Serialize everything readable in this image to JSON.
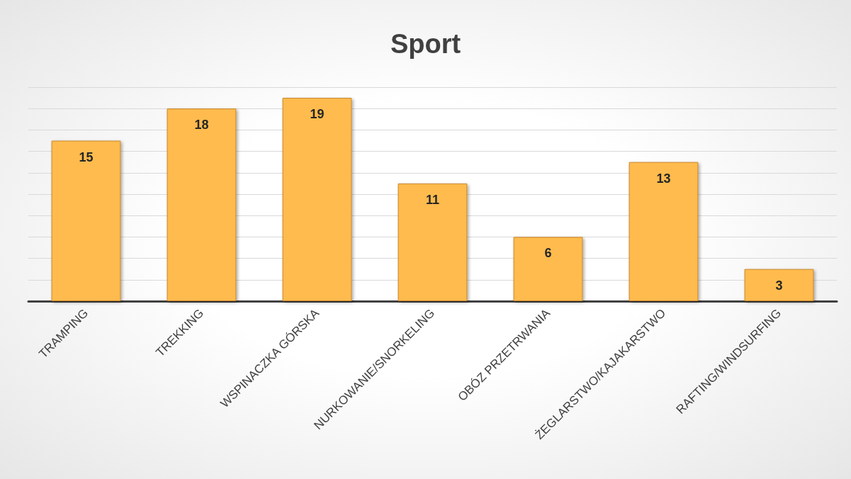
{
  "chart_data": {
    "type": "bar",
    "title": "Sport",
    "categories": [
      "TRAMPING",
      "TREKKING",
      "WSPINACZKA GÓRSKA",
      "NURKOWANIE/SNORKELING",
      "OBÓZ PRZETRWANIA",
      "ŻEGLARSTWO/KAJAKARSTWO",
      "RAFTING/WINDSURFING"
    ],
    "values": [
      15,
      18,
      19,
      11,
      6,
      13,
      3
    ],
    "color": "#ffbb4d",
    "ylim": [
      0,
      20
    ],
    "yticks": [
      {
        "value": 0,
        "label": null
      },
      {
        "value": 2,
        "label": null
      },
      {
        "value": 4,
        "label": null
      },
      {
        "value": 6,
        "label": null
      },
      {
        "value": 8,
        "label": null
      },
      {
        "value": 10,
        "label": null
      },
      {
        "value": 12,
        "label": null
      },
      {
        "value": 14,
        "label": null
      },
      {
        "value": 16,
        "label": null
      },
      {
        "value": 18,
        "label": null
      },
      {
        "value": 20,
        "label": null
      }
    ],
    "tick_labels": "x",
    "grid": "y",
    "data_labels": true
  }
}
